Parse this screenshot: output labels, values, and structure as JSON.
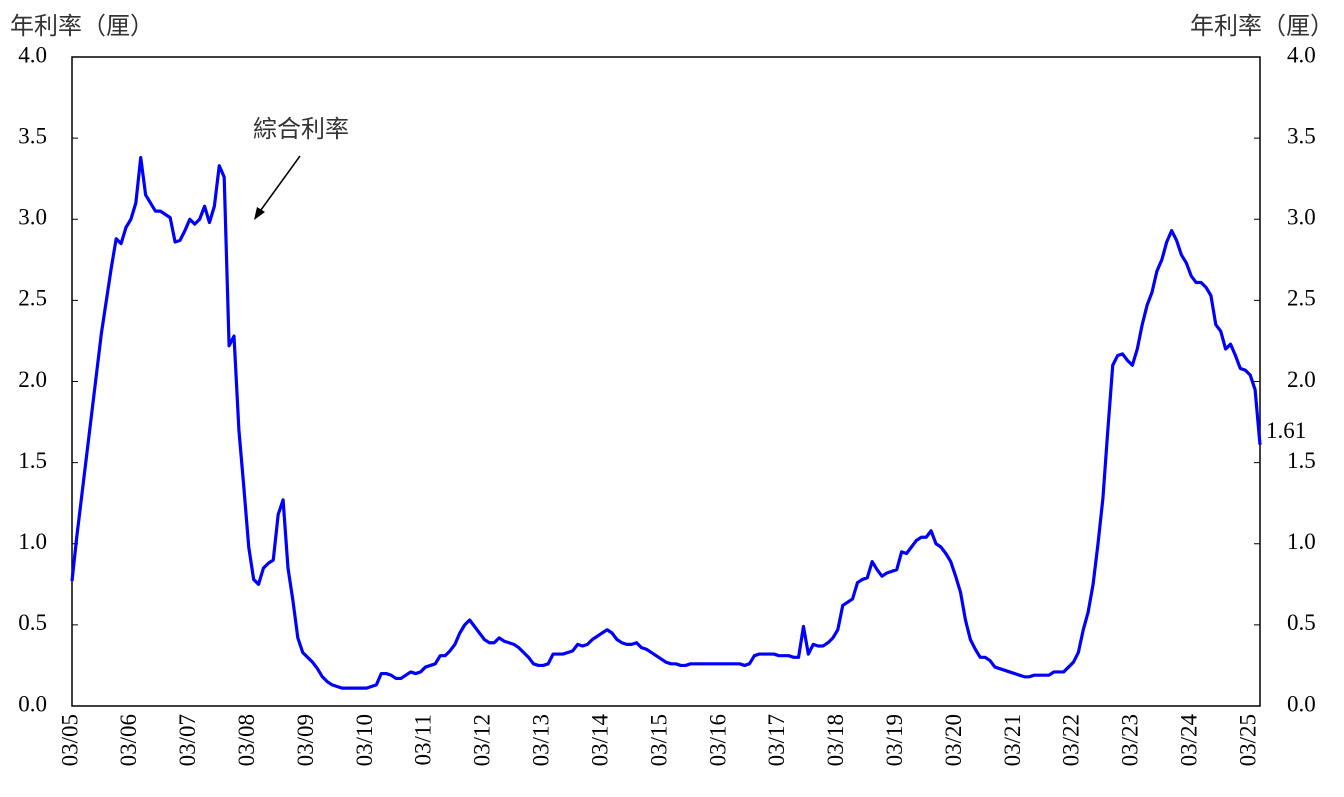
{
  "chart_data": {
    "type": "line",
    "y_label": "年利率（厘）",
    "y2_label": "年利率（厘）",
    "annotation": "綜合利率",
    "categories": [
      "03/05",
      null,
      null,
      null,
      null,
      null,
      null,
      null,
      null,
      null,
      null,
      null,
      "03/06",
      null,
      null,
      null,
      null,
      null,
      null,
      null,
      null,
      null,
      null,
      null,
      "03/07",
      null,
      null,
      null,
      null,
      null,
      null,
      null,
      null,
      null,
      null,
      null,
      "03/08",
      null,
      null,
      null,
      null,
      null,
      null,
      null,
      null,
      null,
      null,
      null,
      "03/09",
      null,
      null,
      null,
      null,
      null,
      null,
      null,
      null,
      null,
      null,
      null,
      "03/10",
      null,
      null,
      null,
      null,
      null,
      null,
      null,
      null,
      null,
      null,
      null,
      "03/11",
      null,
      null,
      null,
      null,
      null,
      null,
      null,
      null,
      null,
      null,
      null,
      "03/12",
      null,
      null,
      null,
      null,
      null,
      null,
      null,
      null,
      null,
      null,
      null,
      "03/13",
      null,
      null,
      null,
      null,
      null,
      null,
      null,
      null,
      null,
      null,
      null,
      "03/14",
      null,
      null,
      null,
      null,
      null,
      null,
      null,
      null,
      null,
      null,
      null,
      "03/15",
      null,
      null,
      null,
      null,
      null,
      null,
      null,
      null,
      null,
      null,
      null,
      "03/16",
      null,
      null,
      null,
      null,
      null,
      null,
      null,
      null,
      null,
      null,
      null,
      "03/17",
      null,
      null,
      null,
      null,
      null,
      null,
      null,
      null,
      null,
      null,
      null,
      "03/18",
      null,
      null,
      null,
      null,
      null,
      null,
      null,
      null,
      null,
      null,
      null,
      "03/19",
      null,
      null,
      null,
      null,
      null,
      null,
      null,
      null,
      null,
      null,
      null,
      "03/20",
      null,
      null,
      null,
      null,
      null,
      null,
      null,
      null,
      null,
      null,
      null,
      "03/21",
      null,
      null,
      null,
      null,
      null,
      null,
      null,
      null,
      null,
      null,
      null,
      "03/22",
      null,
      null,
      null,
      null,
      null,
      null,
      null,
      null,
      null,
      null,
      null,
      "03/23",
      null,
      null,
      null,
      null,
      null,
      null,
      null,
      null,
      null,
      null,
      null,
      "03/24",
      null,
      null,
      null,
      null,
      null,
      null,
      null,
      null,
      null,
      null,
      null,
      "03/25",
      null,
      null
    ],
    "series": [
      {
        "color": "#0000ff",
        "values": [
          0.77,
          1.05,
          1.3,
          1.55,
          1.8,
          2.05,
          2.3,
          2.5,
          2.7,
          2.88,
          2.85,
          2.95,
          3.0,
          3.1,
          3.38,
          3.15,
          3.1,
          3.05,
          3.05,
          3.03,
          3.01,
          2.86,
          2.87,
          2.93,
          3.0,
          2.97,
          3.0,
          3.08,
          2.98,
          3.08,
          3.33,
          3.26,
          2.22,
          2.28,
          1.7,
          1.35,
          0.98,
          0.78,
          0.75,
          0.85,
          0.88,
          0.9,
          1.18,
          1.27,
          0.85,
          0.65,
          0.42,
          0.33,
          0.3,
          0.27,
          0.23,
          0.18,
          0.15,
          0.13,
          0.12,
          0.11,
          0.11,
          0.11,
          0.11,
          0.11,
          0.11,
          0.12,
          0.13,
          0.2,
          0.2,
          0.19,
          0.17,
          0.17,
          0.19,
          0.21,
          0.2,
          0.21,
          0.24,
          0.25,
          0.26,
          0.31,
          0.31,
          0.34,
          0.38,
          0.45,
          0.5,
          0.53,
          0.49,
          0.45,
          0.41,
          0.39,
          0.39,
          0.42,
          0.4,
          0.39,
          0.38,
          0.36,
          0.33,
          0.3,
          0.26,
          0.25,
          0.25,
          0.26,
          0.32,
          0.32,
          0.32,
          0.33,
          0.34,
          0.38,
          0.37,
          0.38,
          0.41,
          0.43,
          0.45,
          0.47,
          0.45,
          0.41,
          0.39,
          0.38,
          0.38,
          0.39,
          0.36,
          0.35,
          0.33,
          0.31,
          0.29,
          0.27,
          0.26,
          0.26,
          0.25,
          0.25,
          0.26,
          0.26,
          0.26,
          0.26,
          0.26,
          0.26,
          0.26,
          0.26,
          0.26,
          0.26,
          0.26,
          0.25,
          0.26,
          0.31,
          0.32,
          0.32,
          0.32,
          0.32,
          0.31,
          0.31,
          0.31,
          0.3,
          0.3,
          0.49,
          0.32,
          0.38,
          0.37,
          0.37,
          0.39,
          0.42,
          0.47,
          0.62,
          0.64,
          0.66,
          0.76,
          0.78,
          0.79,
          0.89,
          0.84,
          0.8,
          0.82,
          0.83,
          0.84,
          0.95,
          0.94,
          0.98,
          1.02,
          1.04,
          1.04,
          1.08,
          1.0,
          0.98,
          0.94,
          0.89,
          0.8,
          0.7,
          0.53,
          0.41,
          0.35,
          0.3,
          0.3,
          0.28,
          0.24,
          0.23,
          0.22,
          0.21,
          0.2,
          0.19,
          0.18,
          0.18,
          0.19,
          0.19,
          0.19,
          0.19,
          0.21,
          0.21,
          0.21,
          0.24,
          0.27,
          0.33,
          0.47,
          0.58,
          0.75,
          1.0,
          1.28,
          1.7,
          2.1,
          2.16,
          2.17,
          2.13,
          2.1,
          2.2,
          2.35,
          2.47,
          2.55,
          2.68,
          2.75,
          2.86,
          2.93,
          2.87,
          2.78,
          2.73,
          2.65,
          2.61,
          2.61,
          2.58,
          2.53,
          2.35,
          2.31,
          2.2,
          2.23,
          2.16,
          2.08,
          2.07,
          2.04,
          1.95,
          1.61
        ]
      }
    ],
    "ylim": [
      0,
      4
    ],
    "yticks": [
      {
        "value": 0,
        "label": "0.0"
      },
      {
        "value": 0.5,
        "label": "0.5"
      },
      {
        "value": 1,
        "label": "1.0"
      },
      {
        "value": 1.5,
        "label": "1.5"
      },
      {
        "value": 2,
        "label": "2.0"
      },
      {
        "value": 2.5,
        "label": "2.5"
      },
      {
        "value": 3,
        "label": "3.0"
      },
      {
        "value": 3.5,
        "label": "3.5"
      },
      {
        "value": 4,
        "label": "4.0"
      }
    ],
    "y2lim": [
      0,
      4
    ],
    "y2ticks": [
      {
        "value": 0,
        "label": "0.0"
      },
      {
        "value": 0.5,
        "label": "0.5"
      },
      {
        "value": 1,
        "label": "1.0"
      },
      {
        "value": 1.5,
        "label": "1.5"
      },
      {
        "value": 2,
        "label": "2.0"
      },
      {
        "value": 2.5,
        "label": "2.5"
      },
      {
        "value": 3,
        "label": "3.0"
      },
      {
        "value": 3.5,
        "label": "3.5"
      },
      {
        "value": 4,
        "label": "4.0"
      }
    ],
    "grid": false
  }
}
